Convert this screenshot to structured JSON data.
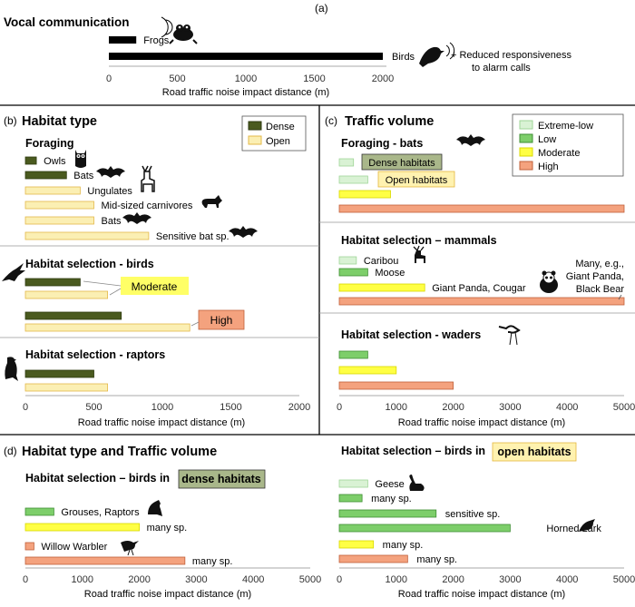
{
  "colors": {
    "black": "#000000",
    "dense": "#4a5a1f",
    "dense_edge": "#2e3a10",
    "open": "#fbefb3",
    "open_edge": "#e3b84a",
    "extreme_low": "#d9f2d4",
    "extreme_low_edge": "#9fd597",
    "low": "#7dce6a",
    "low_edge": "#3f8f34",
    "moderate": "#ffff44",
    "moderate_edge": "#d8d800",
    "high": "#f4a27e",
    "high_edge": "#c0603a",
    "moderate_box": "#ffff66",
    "high_box": "#f4a27e",
    "dense_tag": "#a9b78a",
    "open_tag": "#fff2b0",
    "open_tag_edge": "#e5b63f"
  },
  "icons": {
    "frog": "frog-icon",
    "bird": "bird-icon",
    "owl": "owl-icon",
    "bat": "bat-icon",
    "deer": "deer-icon",
    "fox": "fox-icon",
    "eagle": "eagle-icon",
    "raptor": "raptor-icon",
    "caribou": "caribou-icon",
    "panda": "panda-icon",
    "heron": "heron-icon",
    "grouse": "grouse-icon",
    "warbler": "warbler-icon",
    "goose": "goose-icon",
    "lark": "lark-icon"
  },
  "xlabel": "Road traffic noise impact distance (m)",
  "panel_a": {
    "tag": "(a)",
    "header": "Vocal communication",
    "note_line1": "+ Reduced responsiveness",
    "note_line2": "to alarm calls",
    "ticks": [
      "0",
      "500",
      "1000",
      "1500",
      "2000"
    ]
  },
  "panel_b": {
    "tag": "(b)",
    "title": "Habitat type",
    "sub_foraging": "Foraging",
    "sub_birds": "Habitat selection - birds",
    "sub_raptors": "Habitat selection - raptors",
    "legend": [
      "Dense",
      "Open"
    ],
    "box_moderate": "Moderate",
    "box_high": "High",
    "ticks": [
      "0",
      "500",
      "1000",
      "1500",
      "2000"
    ]
  },
  "panel_c": {
    "tag": "(c)",
    "title": "Traffic volume",
    "sub_bats": "Foraging - bats",
    "sub_mammals": "Habitat selection – mammals",
    "sub_waders": "Habitat selection - waders",
    "legend": [
      "Extreme-low",
      "Low",
      "Moderate",
      "High"
    ],
    "tag_dense": "Dense habitats",
    "tag_open": "Open habitats",
    "many_line1": "Many, e.g.,",
    "many_line2": "Giant Panda,",
    "many_line3": "Black Bear",
    "ticks": [
      "0",
      "1000",
      "2000",
      "3000",
      "4000",
      "5000"
    ]
  },
  "panel_d": {
    "tag": "(d)",
    "title": "Habitat type and Traffic volume",
    "sub_dense_prefix": "Habitat selection – birds in ",
    "sub_dense_box": "dense habitats",
    "sub_open_prefix": "Habitat selection – birds in ",
    "sub_open_box": "open habitats",
    "ticks": [
      "0",
      "1000",
      "2000",
      "3000",
      "4000",
      "5000"
    ]
  },
  "chart_data": [
    {
      "panel": "a",
      "type": "bar",
      "orientation": "horizontal",
      "title": "Vocal communication",
      "xlabel": "Road traffic noise impact distance (m)",
      "xlim": [
        0,
        2000
      ],
      "categories": [
        "Frogs",
        "Birds"
      ],
      "values": [
        200,
        2000
      ]
    },
    {
      "panel": "b",
      "type": "bar",
      "orientation": "horizontal",
      "title": "Habitat type",
      "xlabel": "Road traffic noise impact distance (m)",
      "xlim": [
        0,
        2000
      ],
      "legend": [
        "Dense",
        "Open"
      ],
      "legend_position": "top-right",
      "groups": [
        {
          "name": "Foraging",
          "bars": [
            {
              "label": "Owls",
              "series": "Dense",
              "value": 80
            },
            {
              "label": "Bats",
              "series": "Dense",
              "value": 300
            },
            {
              "label": "Ungulates",
              "series": "Open",
              "value": 400
            },
            {
              "label": "Mid-sized carnivores",
              "series": "Open",
              "value": 500
            },
            {
              "label": "Bats",
              "series": "Open",
              "value": 500
            },
            {
              "label": "Sensitive bat sp.",
              "series": "Open",
              "value": 900
            }
          ]
        },
        {
          "name": "Habitat selection - birds",
          "bars": [
            {
              "label": "Moderate",
              "series": "Dense",
              "value": 400
            },
            {
              "label": "Moderate",
              "series": "Open",
              "value": 600
            },
            {
              "label": "High",
              "series": "Dense",
              "value": 700
            },
            {
              "label": "High",
              "series": "Open",
              "value": 1200
            }
          ]
        },
        {
          "name": "Habitat selection - raptors",
          "bars": [
            {
              "label": "",
              "series": "Dense",
              "value": 500
            },
            {
              "label": "",
              "series": "Open",
              "value": 600
            }
          ]
        }
      ]
    },
    {
      "panel": "c",
      "type": "bar",
      "orientation": "horizontal",
      "title": "Traffic volume",
      "xlabel": "Road traffic noise impact distance (m)",
      "xlim": [
        0,
        5000
      ],
      "legend": [
        "Extreme-low",
        "Low",
        "Moderate",
        "High"
      ],
      "legend_position": "top-right",
      "groups": [
        {
          "name": "Foraging - bats",
          "bars": [
            {
              "label": "Dense habitats",
              "series": "Extreme-low",
              "value": 250
            },
            {
              "label": "Open habitats",
              "series": "Extreme-low",
              "value": 500
            },
            {
              "label": "",
              "series": "Moderate",
              "value": 900
            },
            {
              "label": "",
              "series": "High",
              "value": 5000
            }
          ]
        },
        {
          "name": "Habitat selection – mammals",
          "bars": [
            {
              "label": "Caribou",
              "series": "Extreme-low",
              "value": 300
            },
            {
              "label": "Moose",
              "series": "Low",
              "value": 500
            },
            {
              "label": "Giant Panda, Cougar",
              "series": "Moderate",
              "value": 1500
            },
            {
              "label": "Many, e.g., Giant Panda, Black Bear",
              "series": "High",
              "value": 5000
            }
          ]
        },
        {
          "name": "Habitat selection - waders",
          "bars": [
            {
              "label": "",
              "series": "Low",
              "value": 500
            },
            {
              "label": "",
              "series": "Moderate",
              "value": 1000
            },
            {
              "label": "",
              "series": "High",
              "value": 2000
            }
          ]
        }
      ]
    },
    {
      "panel": "d-dense",
      "type": "bar",
      "orientation": "horizontal",
      "title": "Habitat selection – birds in dense habitats",
      "xlabel": "Road traffic noise impact distance (m)",
      "xlim": [
        0,
        5000
      ],
      "bars": [
        {
          "label": "Grouses, Raptors",
          "series": "Low",
          "value": 500
        },
        {
          "label": "many sp.",
          "series": "Moderate",
          "value": 2000
        },
        {
          "label": "Willow Warbler",
          "series": "High",
          "value": 150
        },
        {
          "label": "many sp.",
          "series": "High",
          "value": 2800
        }
      ]
    },
    {
      "panel": "d-open",
      "type": "bar",
      "orientation": "horizontal",
      "title": "Habitat selection – birds in open habitats",
      "xlabel": "Road traffic noise impact distance (m)",
      "xlim": [
        0,
        5000
      ],
      "bars": [
        {
          "label": "Geese",
          "series": "Extreme-low",
          "value": 500
        },
        {
          "label": "many sp.",
          "series": "Low",
          "value": 400
        },
        {
          "label": "sensitive sp.",
          "series": "Low",
          "value": 1700
        },
        {
          "label": "Horned Lark",
          "series": "Low",
          "value": 3000
        },
        {
          "label": "many sp.",
          "series": "Moderate",
          "value": 600
        },
        {
          "label": "many sp.",
          "series": "High",
          "value": 1200
        }
      ]
    }
  ]
}
